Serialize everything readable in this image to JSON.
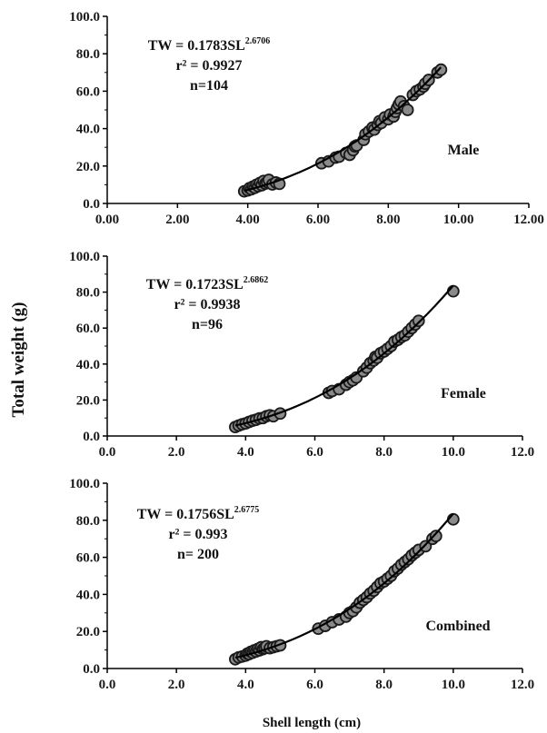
{
  "figure": {
    "ylabel": "Total weight (g)",
    "xlabel": "Shell length (cm)"
  },
  "chart_data": [
    {
      "type": "scatter",
      "panel": "Male",
      "equation_prefix": "TW = 0.1783SL",
      "equation_exponent": "2.6706",
      "r2_text": "r² = 0.9927",
      "n_text": "n=104",
      "curve": {
        "a": 0.1783,
        "b": 2.6706
      },
      "xlim": [
        0,
        12
      ],
      "ylim": [
        0,
        100
      ],
      "xticks": [
        "0.00",
        "2.00",
        "4.00",
        "6.00",
        "8.00",
        "10.00",
        "12.00"
      ],
      "yticks": [
        "0.0",
        "20.0",
        "40.0",
        "60.0",
        "80.0",
        "100.0"
      ],
      "points": [
        [
          3.9,
          6.5
        ],
        [
          4.0,
          7.0
        ],
        [
          4.05,
          8.2
        ],
        [
          4.1,
          7.6
        ],
        [
          4.15,
          9.0
        ],
        [
          4.2,
          8.4
        ],
        [
          4.25,
          10.0
        ],
        [
          4.3,
          9.2
        ],
        [
          4.35,
          11.0
        ],
        [
          4.4,
          9.8
        ],
        [
          4.45,
          12.0
        ],
        [
          4.5,
          10.6
        ],
        [
          4.55,
          11.4
        ],
        [
          4.6,
          12.6
        ],
        [
          4.7,
          10.2
        ],
        [
          4.8,
          11.2
        ],
        [
          4.9,
          10.5
        ],
        [
          6.1,
          21.5
        ],
        [
          6.3,
          22.5
        ],
        [
          6.5,
          24.5
        ],
        [
          6.6,
          25.0
        ],
        [
          6.8,
          27.0
        ],
        [
          6.9,
          26.0
        ],
        [
          7.0,
          28.5
        ],
        [
          7.05,
          30.5
        ],
        [
          7.1,
          31.0
        ],
        [
          7.3,
          34.0
        ],
        [
          7.35,
          37.0
        ],
        [
          7.45,
          38.5
        ],
        [
          7.55,
          40.5
        ],
        [
          7.6,
          39.5
        ],
        [
          7.7,
          42.0
        ],
        [
          7.75,
          44.0
        ],
        [
          7.8,
          43.0
        ],
        [
          7.9,
          46.0
        ],
        [
          8.0,
          45.0
        ],
        [
          8.05,
          47.5
        ],
        [
          8.15,
          46.5
        ],
        [
          8.2,
          49.0
        ],
        [
          8.25,
          51.0
        ],
        [
          8.3,
          53.0
        ],
        [
          8.35,
          54.5
        ],
        [
          8.45,
          52.0
        ],
        [
          8.55,
          50.0
        ],
        [
          8.7,
          58.0
        ],
        [
          8.8,
          60.0
        ],
        [
          8.9,
          61.0
        ],
        [
          9.0,
          62.5
        ],
        [
          9.05,
          64.0
        ],
        [
          9.15,
          66.0
        ],
        [
          9.4,
          70.0
        ],
        [
          9.5,
          71.5
        ]
      ]
    },
    {
      "type": "scatter",
      "panel": "Female",
      "equation_prefix": "TW = 0.1723SL",
      "equation_exponent": "2.6862",
      "r2_text": "r² = 0.9938",
      "n_text": "n=96",
      "curve": {
        "a": 0.1723,
        "b": 2.6862
      },
      "xlim": [
        0,
        12
      ],
      "ylim": [
        0,
        100
      ],
      "xticks": [
        "0.0",
        "2.0",
        "4.0",
        "6.0",
        "8.0",
        "10.0",
        "12.0"
      ],
      "yticks": [
        "0.0",
        "20.0",
        "40.0",
        "60.0",
        "80.0",
        "100.0"
      ],
      "points": [
        [
          3.7,
          5.0
        ],
        [
          3.8,
          5.8
        ],
        [
          3.9,
          6.5
        ],
        [
          4.0,
          7.0
        ],
        [
          4.1,
          7.8
        ],
        [
          4.2,
          8.5
        ],
        [
          4.3,
          9.0
        ],
        [
          4.4,
          9.8
        ],
        [
          4.5,
          10.0
        ],
        [
          4.6,
          11.0
        ],
        [
          4.7,
          11.5
        ],
        [
          4.8,
          11.0
        ],
        [
          5.0,
          12.5
        ],
        [
          6.4,
          24.0
        ],
        [
          6.5,
          25.0
        ],
        [
          6.7,
          26.0
        ],
        [
          6.9,
          28.5
        ],
        [
          7.0,
          30.0
        ],
        [
          7.1,
          31.0
        ],
        [
          7.2,
          32.5
        ],
        [
          7.4,
          36.0
        ],
        [
          7.5,
          38.0
        ],
        [
          7.6,
          40.5
        ],
        [
          7.7,
          42.0
        ],
        [
          7.75,
          44.0
        ],
        [
          7.8,
          43.5
        ],
        [
          7.9,
          46.0
        ],
        [
          8.0,
          47.0
        ],
        [
          8.1,
          48.5
        ],
        [
          8.2,
          50.0
        ],
        [
          8.3,
          52.5
        ],
        [
          8.4,
          53.5
        ],
        [
          8.5,
          55.0
        ],
        [
          8.6,
          56.0
        ],
        [
          8.7,
          58.0
        ],
        [
          8.8,
          60.0
        ],
        [
          8.9,
          62.0
        ],
        [
          9.0,
          64.0
        ],
        [
          10.0,
          80.5
        ]
      ]
    },
    {
      "type": "scatter",
      "panel": "Combined",
      "equation_prefix": "TW = 0.1756SL",
      "equation_exponent": "2.6775",
      "r2_text": "r² = 0.993",
      "n_text": "n= 200",
      "curve": {
        "a": 0.1756,
        "b": 2.6775
      },
      "xlim": [
        0,
        12
      ],
      "ylim": [
        0,
        100
      ],
      "xticks": [
        "0.0",
        "2.0",
        "4.0",
        "6.0",
        "8.0",
        "10.0",
        "12.0"
      ],
      "yticks": [
        "0.0",
        "20.0",
        "40.0",
        "60.0",
        "80.0",
        "100.0"
      ],
      "points": [
        [
          3.7,
          5.0
        ],
        [
          3.8,
          6.0
        ],
        [
          3.9,
          6.5
        ],
        [
          4.0,
          7.0
        ],
        [
          4.05,
          8.0
        ],
        [
          4.1,
          7.8
        ],
        [
          4.15,
          9.0
        ],
        [
          4.2,
          8.5
        ],
        [
          4.25,
          9.8
        ],
        [
          4.3,
          9.2
        ],
        [
          4.35,
          10.5
        ],
        [
          4.4,
          9.8
        ],
        [
          4.45,
          11.5
        ],
        [
          4.5,
          10.5
        ],
        [
          4.55,
          11.0
        ],
        [
          4.6,
          12.0
        ],
        [
          4.7,
          11.0
        ],
        [
          4.8,
          11.5
        ],
        [
          4.9,
          12.0
        ],
        [
          5.0,
          12.5
        ],
        [
          6.1,
          21.5
        ],
        [
          6.3,
          23.0
        ],
        [
          6.5,
          25.0
        ],
        [
          6.7,
          26.5
        ],
        [
          6.9,
          28.0
        ],
        [
          7.0,
          30.0
        ],
        [
          7.1,
          31.0
        ],
        [
          7.2,
          33.0
        ],
        [
          7.3,
          35.5
        ],
        [
          7.4,
          37.0
        ],
        [
          7.5,
          38.5
        ],
        [
          7.6,
          40.5
        ],
        [
          7.7,
          42.0
        ],
        [
          7.8,
          44.0
        ],
        [
          7.9,
          46.0
        ],
        [
          8.0,
          47.0
        ],
        [
          8.1,
          48.5
        ],
        [
          8.2,
          50.0
        ],
        [
          8.3,
          52.5
        ],
        [
          8.4,
          54.0
        ],
        [
          8.5,
          56.0
        ],
        [
          8.6,
          57.5
        ],
        [
          8.7,
          59.0
        ],
        [
          8.8,
          61.0
        ],
        [
          8.9,
          62.5
        ],
        [
          9.0,
          64.0
        ],
        [
          9.2,
          66.0
        ],
        [
          9.4,
          70.0
        ],
        [
          9.5,
          71.5
        ],
        [
          10.0,
          80.5
        ]
      ]
    }
  ],
  "colors": {
    "marker_fill": "#8a8a8a",
    "marker_stroke": "#1a1a1a",
    "curve": "#000000",
    "axis": "#000000",
    "text": "#111111"
  }
}
